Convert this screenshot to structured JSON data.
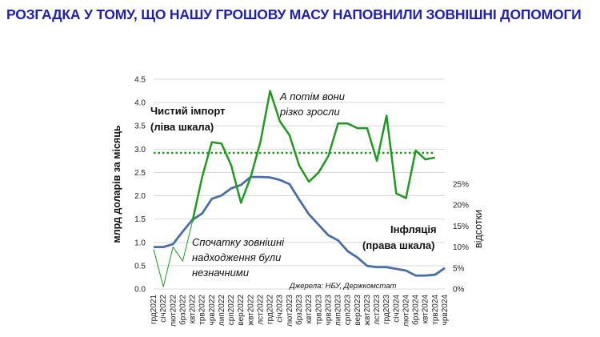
{
  "page": {
    "title": "РОЗГАДКА У ТОМУ, ЩО НАШУ ГРОШОВУ МАСУ НАПОВНИЛИ ЗОВНІШНІ ДОПОМОГИ"
  },
  "chart_data": {
    "type": "line",
    "ylabel": "млрд доларів за місяць",
    "y2label": "відсотки",
    "ylim": [
      0,
      4.5
    ],
    "y_ticks": [
      "0.0",
      "0.5",
      "1.0",
      "1.5",
      "2.0",
      "2.5",
      "3.0",
      "3.5",
      "4.0",
      "4.5"
    ],
    "y2lim": [
      0,
      0.5
    ],
    "y2_ticks": [
      "0%",
      "5%",
      "10%",
      "15%",
      "20%",
      "25%"
    ],
    "grid": "horizontal",
    "categories": [
      "грд2021",
      "січ2022",
      "лют2022",
      "бер2022",
      "кві2022",
      "тра2022",
      "чер2022",
      "лип2022",
      "сер2022",
      "вер2022",
      "жов2022",
      "лис2022",
      "грд2022",
      "січ2023",
      "лют2023",
      "бер2023",
      "кві2023",
      "тра2023",
      "чер2023",
      "лип2023",
      "сер2023",
      "вер2023",
      "жов2023",
      "лис2023",
      "грд2023",
      "січ2024",
      "лют2024",
      "бер2024",
      "кві2024",
      "тра2024",
      "чер2024"
    ],
    "x_tick_labels": [
      "грд2021",
      "січ2022",
      "лют2022",
      "брз2022",
      "квт2022",
      "трв2022",
      "чрв2022",
      "лип2022",
      "срп2022",
      "вер2022",
      "жвт2022",
      "лст2022",
      "грд2022",
      "січ2023",
      "лют2023",
      "брз2023",
      "квт2023",
      "трв2023",
      "чрв2023",
      "лип2023",
      "срп2023",
      "вер2023",
      "жвт2023",
      "лст2023",
      "грд2023",
      "січ2024",
      "лют2024",
      "брз2024",
      "квт2024",
      "трв2024",
      "чрв2024"
    ],
    "series": [
      {
        "name": "Чистий імпорт (ліва шкала)",
        "axis": "left",
        "color": "#1f9a1f",
        "segments": [
          {
            "start": 0,
            "width": 1,
            "values": [
              0.85,
              0.05,
              0.9,
              0.6,
              1.45
            ]
          },
          {
            "start": 4,
            "width": 2.5,
            "values": [
              1.45,
              2.4,
              3.15,
              3.12,
              2.65,
              1.85,
              2.4,
              3.15,
              4.25,
              3.6,
              3.3,
              2.65,
              2.3,
              2.5,
              2.85,
              3.55,
              3.55,
              3.45,
              3.45,
              2.75,
              3.72,
              2.05,
              1.95,
              2.97,
              2.78,
              2.82
            ]
          }
        ]
      },
      {
        "name": "Інфляція (права шкала)",
        "axis": "right",
        "color": "#4a6ea8",
        "values": [
          0.1,
          0.1,
          0.107,
          0.137,
          0.165,
          0.18,
          0.215,
          0.223,
          0.24,
          0.248,
          0.267,
          0.267,
          0.266,
          0.26,
          0.25,
          0.213,
          0.178,
          0.153,
          0.128,
          0.116,
          0.09,
          0.075,
          0.055,
          0.052,
          0.052,
          0.048,
          0.044,
          0.032,
          0.032,
          0.034,
          0.05
        ]
      }
    ],
    "reference_line": {
      "value": 2.92,
      "axis": "left",
      "style": "dotted",
      "color": "#1f9a1f"
    },
    "annotations": {
      "import_label": [
        "Чистий імпорт",
        "(ліва шкала)"
      ],
      "rise_note": [
        "А потім вони",
        "різко зросли"
      ],
      "early_note": [
        "Спочатку зовнішні",
        "надходження були",
        "незначними"
      ],
      "inflation_label": [
        "Інфляція",
        "(права шкала)"
      ],
      "source": "Джерела: НБУ, Держкомстат"
    }
  }
}
